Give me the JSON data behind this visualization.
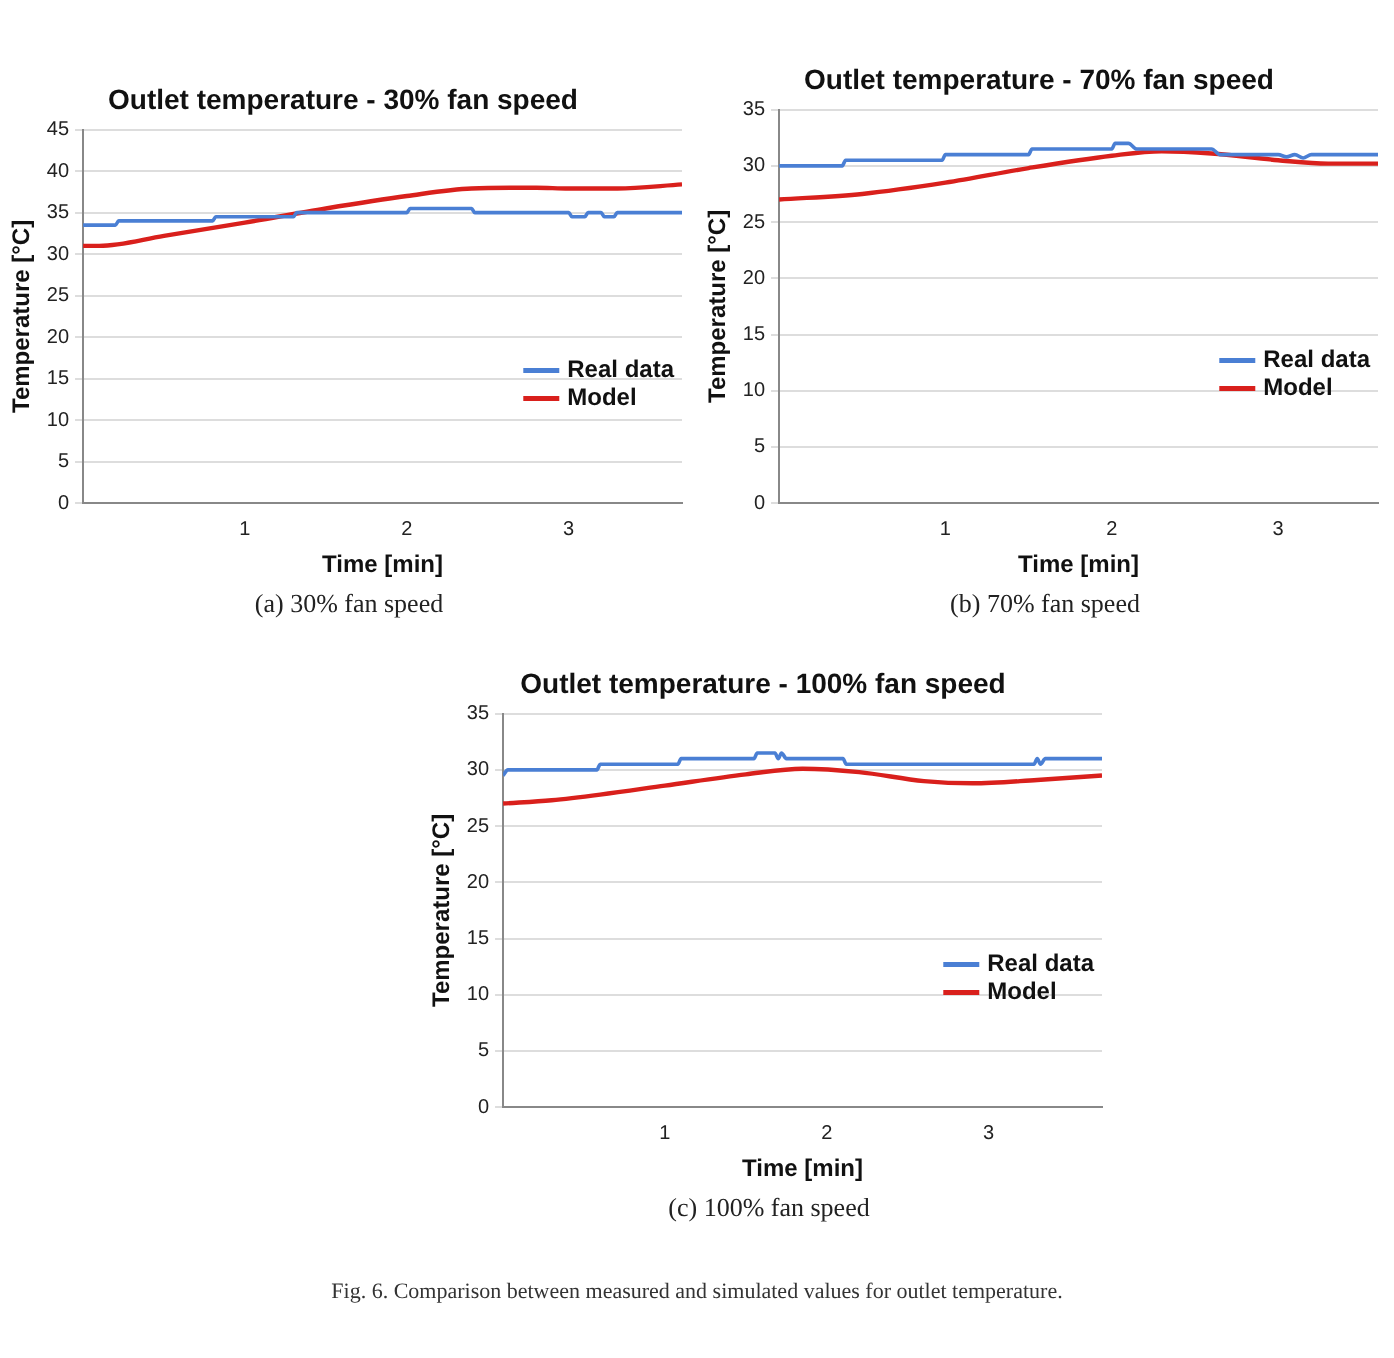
{
  "chart_data": [
    {
      "type": "line",
      "title": "Outlet temperature - 30% fan speed",
      "xlabel": "Time [min]",
      "ylabel": "Temperature [°C]",
      "xlim": [
        0,
        3.7
      ],
      "xticks": [
        1,
        2,
        3
      ],
      "ylim": [
        0,
        45
      ],
      "yticks": [
        0,
        5,
        10,
        15,
        20,
        25,
        30,
        35,
        40,
        45
      ],
      "grid": "y",
      "legend": "right",
      "marker": "none",
      "annotations": [
        "(a) 30% fan speed"
      ],
      "series": [
        {
          "name": "Real data",
          "color": "#4a7fd4",
          "x": [
            0,
            0.2,
            0.22,
            0.8,
            0.82,
            1.3,
            1.32,
            2.0,
            2.02,
            2.4,
            2.42,
            3.0,
            3.02,
            3.1,
            3.12,
            3.2,
            3.22,
            3.28,
            3.3,
            3.7
          ],
          "values": [
            33.5,
            33.5,
            34,
            34,
            34.5,
            34.5,
            35,
            35,
            35.5,
            35.5,
            35,
            35,
            34.5,
            34.5,
            35,
            35,
            34.5,
            34.5,
            35,
            35
          ]
        },
        {
          "name": "Model",
          "color": "#d9201c",
          "x": [
            0,
            0.1,
            0.5,
            1,
            1.5,
            2,
            2.4,
            2.8,
            3,
            3.3,
            3.7
          ],
          "values": [
            31,
            31,
            32.2,
            33.8,
            35.5,
            37,
            37.9,
            38,
            37.9,
            37.9,
            38.4
          ]
        }
      ]
    },
    {
      "type": "line",
      "title": "Outlet temperature - 70% fan speed",
      "xlabel": "Time [min]",
      "ylabel": "Temperature [°C]",
      "xlim": [
        0,
        3.6
      ],
      "xticks": [
        1,
        2,
        3
      ],
      "ylim": [
        0,
        35
      ],
      "yticks": [
        0,
        5,
        10,
        15,
        20,
        25,
        30,
        35
      ],
      "grid": "y",
      "legend": "right",
      "marker": "none",
      "annotations": [
        "(b) 70% fan speed"
      ],
      "series": [
        {
          "name": "Real data",
          "color": "#4a7fd4",
          "x": [
            0,
            0.38,
            0.4,
            0.98,
            1.0,
            1.5,
            1.52,
            2.0,
            2.02,
            2.1,
            2.15,
            2.6,
            2.65,
            3.0,
            3.05,
            3.1,
            3.15,
            3.2,
            3.6
          ],
          "values": [
            30,
            30,
            30.5,
            30.5,
            31,
            31,
            31.5,
            31.5,
            32,
            32,
            31.5,
            31.5,
            31,
            31,
            30.8,
            31,
            30.7,
            31,
            31
          ]
        },
        {
          "name": "Model",
          "color": "#d9201c",
          "x": [
            0,
            0.5,
            1,
            1.5,
            2,
            2.3,
            2.6,
            3,
            3.3,
            3.6
          ],
          "values": [
            27,
            27.5,
            28.5,
            29.8,
            30.9,
            31.3,
            31.1,
            30.5,
            30.2,
            30.2
          ]
        }
      ]
    },
    {
      "type": "line",
      "title": "Outlet temperature - 100% fan speed",
      "xlabel": "Time [min]",
      "ylabel": "Temperature [°C]",
      "xlim": [
        0,
        3.7
      ],
      "xticks": [
        1,
        2,
        3
      ],
      "ylim": [
        0,
        35
      ],
      "yticks": [
        0,
        5,
        10,
        15,
        20,
        25,
        30,
        35
      ],
      "grid": "y",
      "legend": "right",
      "marker": "none",
      "annotations": [
        "(c) 100% fan speed",
        "Fig. 6. Comparison between measured and simulated values for outlet temperature."
      ],
      "series": [
        {
          "name": "Real data",
          "color": "#4a7fd4",
          "x": [
            0,
            0.03,
            0.58,
            0.6,
            1.08,
            1.1,
            1.55,
            1.57,
            1.68,
            1.7,
            1.72,
            1.75,
            2.1,
            2.12,
            3.28,
            3.3,
            3.32,
            3.35,
            3.7
          ],
          "values": [
            29.5,
            30,
            30,
            30.5,
            30.5,
            31,
            31,
            31.5,
            31.5,
            31,
            31.5,
            31,
            31,
            30.5,
            30.5,
            31,
            30.5,
            31,
            31
          ]
        },
        {
          "name": "Model",
          "color": "#d9201c",
          "x": [
            0,
            0.3,
            0.6,
            1,
            1.5,
            1.85,
            2.2,
            2.6,
            2.9,
            3.3,
            3.7
          ],
          "values": [
            27,
            27.3,
            27.8,
            28.6,
            29.6,
            30.1,
            29.8,
            29,
            28.8,
            29.1,
            29.5
          ]
        }
      ]
    }
  ]
}
